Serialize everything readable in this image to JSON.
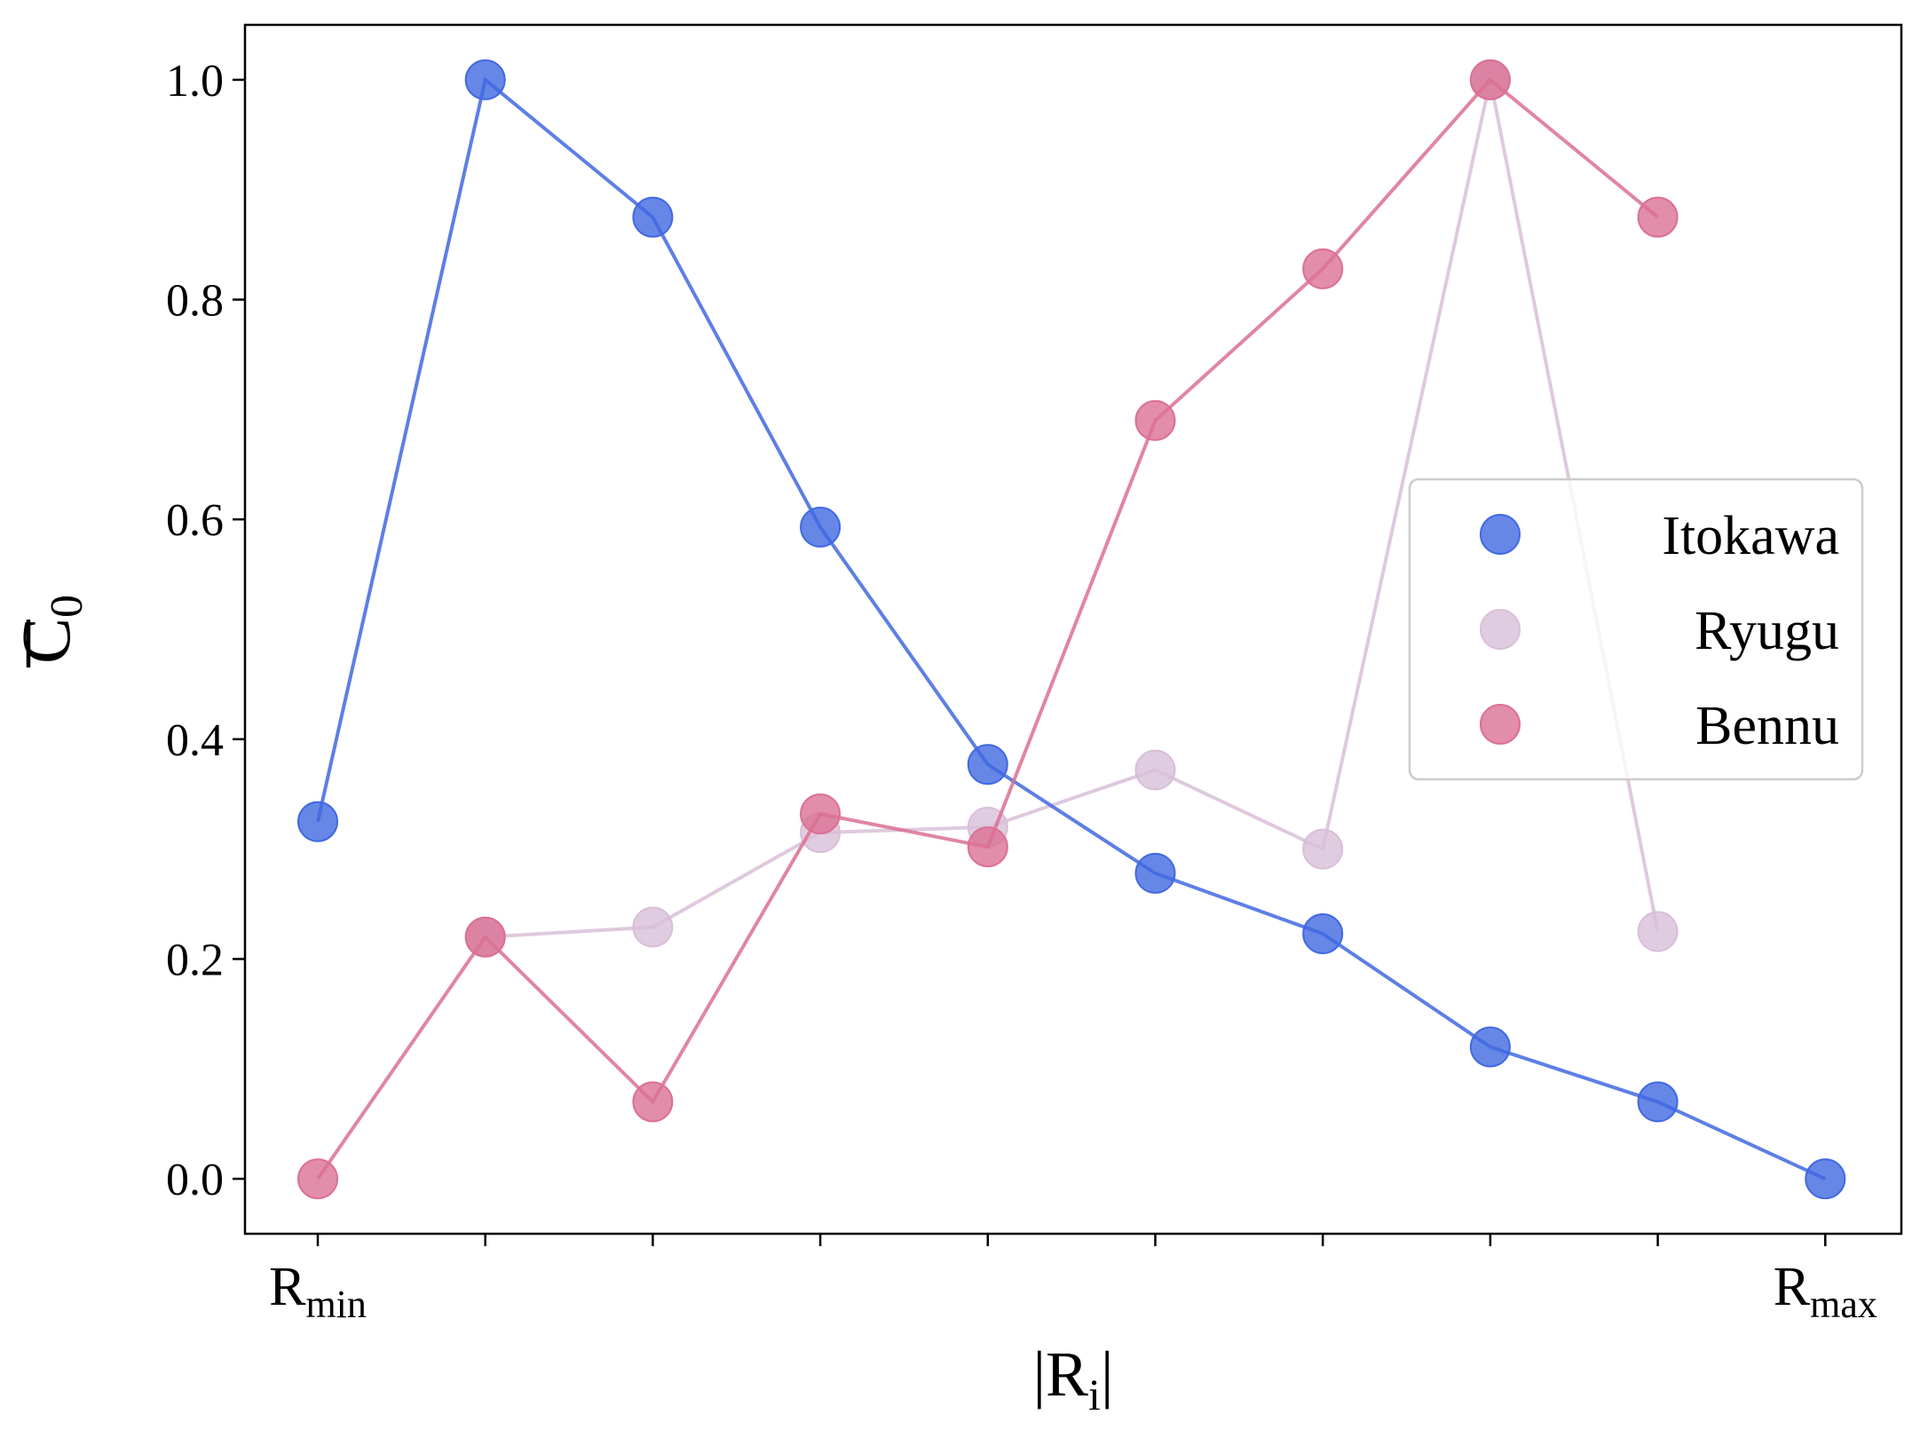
{
  "chart_data": {
    "type": "line",
    "xlabel": {
      "base": "|R",
      "sub": "i",
      "tail": "|"
    },
    "ylabel": {
      "base": "C",
      "sub": "0",
      "overline": true
    },
    "x_tick_labels": [
      {
        "base": "R",
        "sub": "min",
        "index": 0
      },
      {
        "base": "R",
        "sub": "max",
        "index": 9
      }
    ],
    "x_tick_count": 10,
    "ylim": [
      -0.05,
      1.05
    ],
    "yticks": [
      "0.0",
      "0.2",
      "0.4",
      "0.6",
      "0.8",
      "1.0"
    ],
    "grid": false,
    "legend_position": "center-right",
    "series": [
      {
        "name": "Itokawa",
        "color": "#4169E1",
        "x": [
          0,
          1,
          2,
          3,
          4,
          5,
          6,
          7,
          8,
          9
        ],
        "values": [
          0.325,
          1.0,
          0.875,
          0.593,
          0.377,
          0.278,
          0.223,
          0.12,
          0.07,
          0.0
        ]
      },
      {
        "name": "Ryugu",
        "color": "#D8BFD8",
        "x": [
          1,
          2,
          3,
          4,
          5,
          6,
          7,
          8
        ],
        "values": [
          0.22,
          0.229,
          0.315,
          0.32,
          0.372,
          0.3,
          1.0,
          0.225
        ]
      },
      {
        "name": "Bennu",
        "color": "#DB7093",
        "x": [
          0,
          1,
          2,
          3,
          4,
          5,
          6,
          7,
          8
        ],
        "values": [
          0.0,
          0.22,
          0.07,
          0.332,
          0.302,
          0.69,
          0.828,
          1.0,
          0.875
        ]
      }
    ]
  }
}
